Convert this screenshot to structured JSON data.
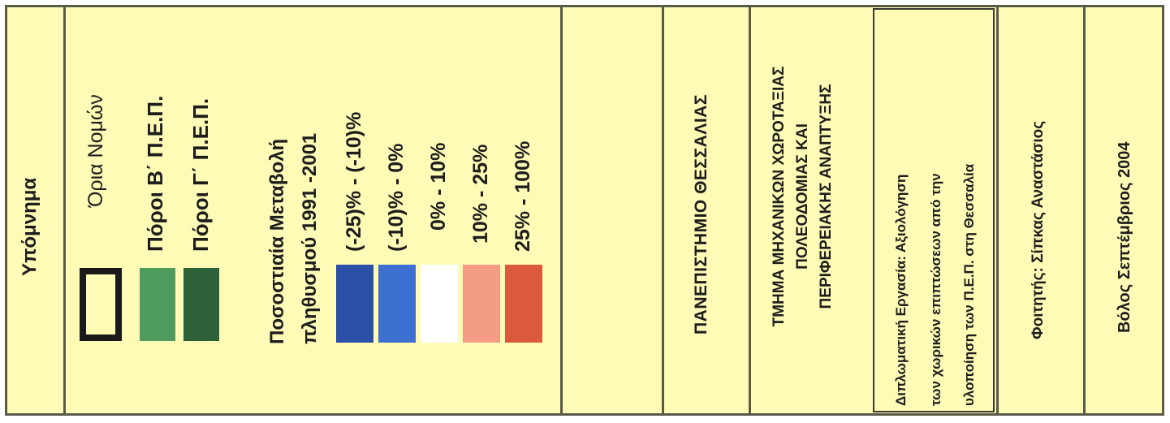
{
  "legend": {
    "title": "Υπόμνημα",
    "boundary_label": "Όρια Νομών",
    "poroi_b_label": "Πόροι Β΄ Π.Ε.Π.",
    "poroi_g_label": "Πόροι Γ΄ Π.Ε.Π.",
    "change_title_line1": "Ποσοστιαία Μεταβολή",
    "change_title_line2": "πληθυσμού 1991 -2001",
    "classes": [
      {
        "label": "(-25)% - (-10)%",
        "color": "#2c4fa8"
      },
      {
        "label": "(-10)% - 0%",
        "color": "#3d6fd0"
      },
      {
        "label": "0% - 10%",
        "color": "#ffffff"
      },
      {
        "label": "10% - 25%",
        "color": "#f49c86"
      },
      {
        "label": "25% - 100%",
        "color": "#dc5a3c"
      }
    ],
    "colors": {
      "boundary_border": "#1a1a1a",
      "poroi_b": "#4f9a5f",
      "poroi_g": "#2d6238"
    }
  },
  "title_block": {
    "university": "ΠΑΝΕΠΙΣΤΗΜΙΟ ΘΕΣΣΑΛΙΑΣ",
    "department_line1": "ΤΜΗΜΑ ΜΗΧΑΝΙΚΩΝ ΧΩΡΟΤΑΞΙΑΣ",
    "department_line2": "ΠΟΛΕΟΔΟΜΙΑΣ ΚΑΙ",
    "department_line3": "ΠΕΡΙΦΕΡΕΙΑΚΗΣ ΑΝΑΠΤΥΞΗΣ",
    "thesis_line1": "Διπλωματική Εργασία: Αξιολόγηση",
    "thesis_line2": "των χωρικών επιπτώσεων από την",
    "thesis_line3": "υλοποίηση των Π.Ε.Π. στη Θεσσαλία",
    "student": "Φοιτητής: Σίπκας Αναστάσιος",
    "place_date": "Βόλος Σεπτέμβριος 2004"
  }
}
